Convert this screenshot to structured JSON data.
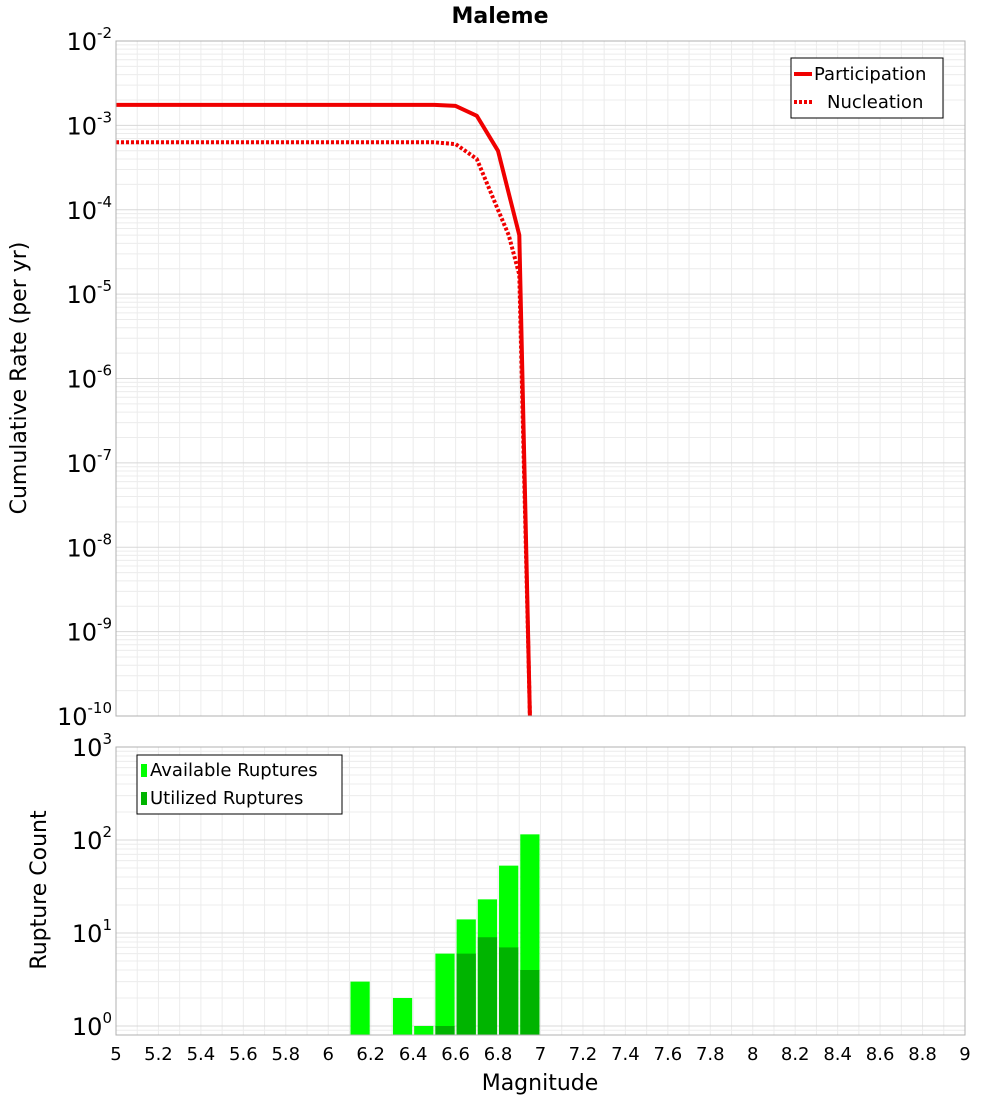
{
  "title": "Maleme",
  "chart_data": [
    {
      "type": "line",
      "panel": "top",
      "title": "Maleme",
      "ylabel": "Cumulative Rate (per yr)",
      "yscale": "log",
      "ylim": [
        1e-10,
        0.01
      ],
      "xlim": [
        5,
        9
      ],
      "grid": true,
      "legend_position": "top-right",
      "y_tick_exponents": [
        -2,
        -3,
        -4,
        -5,
        -6,
        -7,
        -8,
        -9,
        -10
      ],
      "series": [
        {
          "name": "Participation",
          "style": "solid",
          "color": "#f00000",
          "x": [
            5.0,
            5.5,
            6.0,
            6.5,
            6.6,
            6.7,
            6.8,
            6.9,
            6.95
          ],
          "y": [
            0.00175,
            0.00175,
            0.00175,
            0.00175,
            0.0017,
            0.0013,
            0.0005,
            5e-05,
            1e-10
          ]
        },
        {
          "name": "Nucleation",
          "style": "dotted",
          "color": "#f00000",
          "x": [
            5.0,
            5.5,
            6.0,
            6.5,
            6.6,
            6.7,
            6.75,
            6.8,
            6.85,
            6.9,
            6.95
          ],
          "y": [
            0.00063,
            0.00063,
            0.00063,
            0.00063,
            0.0006,
            0.0004,
            0.0002,
            0.0001,
            5e-05,
            1.7e-05,
            1e-10
          ]
        }
      ]
    },
    {
      "type": "bar",
      "panel": "bottom",
      "xlabel": "Magnitude",
      "ylabel": "Rupture Count",
      "yscale": "log",
      "ylim": [
        0.8,
        1000
      ],
      "xlim": [
        5,
        9
      ],
      "grid": true,
      "legend_position": "top-left",
      "y_tick_exponents": [
        3,
        2,
        1,
        0
      ],
      "x_ticks": [
        "5",
        "5.2",
        "5.4",
        "5.6",
        "5.8",
        "6",
        "6.2",
        "6.4",
        "6.6",
        "6.8",
        "7",
        "7.2",
        "7.4",
        "7.6",
        "7.8",
        "8",
        "8.2",
        "8.4",
        "8.6",
        "8.8",
        "9"
      ],
      "bin_centers": [
        6.15,
        6.35,
        6.45,
        6.55,
        6.65,
        6.75,
        6.85,
        6.95
      ],
      "bin_width": 0.1,
      "series": [
        {
          "name": "Available Ruptures",
          "color": "#00ff00",
          "values": [
            3,
            2,
            1,
            6,
            14,
            23,
            53,
            115
          ]
        },
        {
          "name": "Utilized Ruptures",
          "color": "#00b400",
          "values": [
            0,
            0,
            0,
            1,
            6,
            9,
            7,
            4
          ]
        }
      ]
    }
  ]
}
